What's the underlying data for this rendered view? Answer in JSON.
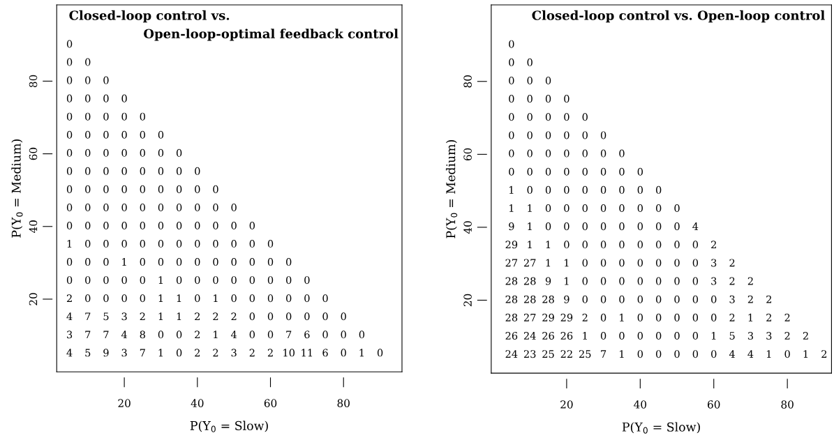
{
  "chart_data": [
    {
      "type": "heatmap",
      "title": "Closed-loop control vs.",
      "subtitle": "Open-loop-optimal feedback control",
      "xlabel": "P(Y$_{0}$ = Slow)",
      "ylabel": "P(Y$_{0}$ = Medium)",
      "x": [
        5,
        10,
        15,
        20,
        25,
        30,
        35,
        40,
        45,
        50,
        55,
        60,
        65,
        70,
        75,
        80,
        85,
        90
      ],
      "y": [
        90,
        85,
        80,
        75,
        70,
        65,
        60,
        55,
        50,
        45,
        40,
        35,
        30,
        25,
        20,
        15,
        10,
        5
      ],
      "xlim": [
        1.5,
        96
      ],
      "xticks": [
        20,
        40,
        60,
        80
      ],
      "ylim": [
        0,
        101
      ],
      "yticks": [
        20,
        40,
        60,
        80
      ],
      "data_labels": true,
      "cells": [
        [
          0
        ],
        [
          0,
          0
        ],
        [
          0,
          0,
          0
        ],
        [
          0,
          0,
          0,
          0
        ],
        [
          0,
          0,
          0,
          0,
          0
        ],
        [
          0,
          0,
          0,
          0,
          0,
          0
        ],
        [
          0,
          0,
          0,
          0,
          0,
          0,
          0
        ],
        [
          0,
          0,
          0,
          0,
          0,
          0,
          0,
          0
        ],
        [
          0,
          0,
          0,
          0,
          0,
          0,
          0,
          0,
          0
        ],
        [
          0,
          0,
          0,
          0,
          0,
          0,
          0,
          0,
          0,
          0
        ],
        [
          0,
          0,
          0,
          0,
          0,
          0,
          0,
          0,
          0,
          0,
          0
        ],
        [
          1,
          0,
          0,
          0,
          0,
          0,
          0,
          0,
          0,
          0,
          0,
          0
        ],
        [
          0,
          0,
          0,
          1,
          0,
          0,
          0,
          0,
          0,
          0,
          0,
          0,
          0
        ],
        [
          0,
          0,
          0,
          0,
          0,
          1,
          0,
          0,
          0,
          0,
          0,
          0,
          0,
          0
        ],
        [
          2,
          0,
          0,
          0,
          0,
          1,
          1,
          0,
          1,
          0,
          0,
          0,
          0,
          0,
          0
        ],
        [
          4,
          7,
          5,
          3,
          2,
          1,
          1,
          2,
          2,
          2,
          0,
          0,
          0,
          0,
          0,
          0
        ],
        [
          3,
          7,
          7,
          4,
          8,
          0,
          0,
          2,
          1,
          4,
          0,
          0,
          7,
          6,
          0,
          0,
          0
        ],
        [
          4,
          5,
          9,
          3,
          7,
          1,
          0,
          2,
          2,
          3,
          2,
          2,
          10,
          11,
          6,
          0,
          1,
          0
        ]
      ]
    },
    {
      "type": "heatmap",
      "title": "Closed-loop control vs. Open-loop control",
      "xlabel": "P(Y$_{0}$ = Slow)",
      "ylabel": "P(Y$_{0}$ = Medium)",
      "x": [
        5,
        10,
        15,
        20,
        25,
        30,
        35,
        40,
        45,
        50,
        55,
        60,
        65,
        70,
        75,
        80,
        85,
        90
      ],
      "y": [
        90,
        85,
        80,
        75,
        70,
        65,
        60,
        55,
        50,
        45,
        40,
        35,
        30,
        25,
        20,
        15,
        10,
        5
      ],
      "xlim": [
        -0.5,
        92
      ],
      "xticks": [
        20,
        40,
        60,
        80
      ],
      "ylim": [
        0,
        101
      ],
      "yticks": [
        20,
        40,
        60,
        80
      ],
      "data_labels": true,
      "cells": [
        [
          0
        ],
        [
          0,
          0
        ],
        [
          0,
          0,
          0
        ],
        [
          0,
          0,
          0,
          0
        ],
        [
          0,
          0,
          0,
          0,
          0
        ],
        [
          0,
          0,
          0,
          0,
          0,
          0
        ],
        [
          0,
          0,
          0,
          0,
          0,
          0,
          0
        ],
        [
          0,
          0,
          0,
          0,
          0,
          0,
          0,
          0
        ],
        [
          1,
          0,
          0,
          0,
          0,
          0,
          0,
          0,
          0
        ],
        [
          1,
          1,
          0,
          0,
          0,
          0,
          0,
          0,
          0,
          0
        ],
        [
          9,
          1,
          0,
          0,
          0,
          0,
          0,
          0,
          0,
          0,
          4
        ],
        [
          29,
          1,
          1,
          0,
          0,
          0,
          0,
          0,
          0,
          0,
          0,
          2
        ],
        [
          27,
          27,
          1,
          1,
          0,
          0,
          0,
          0,
          0,
          0,
          0,
          3,
          2
        ],
        [
          28,
          28,
          9,
          1,
          0,
          0,
          0,
          0,
          0,
          0,
          0,
          3,
          2,
          2
        ],
        [
          28,
          28,
          28,
          9,
          0,
          0,
          0,
          0,
          0,
          0,
          0,
          0,
          3,
          2,
          2
        ],
        [
          28,
          27,
          29,
          29,
          2,
          0,
          1,
          0,
          0,
          0,
          0,
          0,
          2,
          1,
          2,
          2
        ],
        [
          26,
          24,
          26,
          26,
          1,
          0,
          0,
          0,
          0,
          0,
          0,
          1,
          5,
          3,
          3,
          2,
          2
        ],
        [
          24,
          23,
          25,
          22,
          25,
          7,
          1,
          0,
          0,
          0,
          0,
          0,
          4,
          4,
          1,
          0,
          1,
          2
        ]
      ]
    }
  ]
}
